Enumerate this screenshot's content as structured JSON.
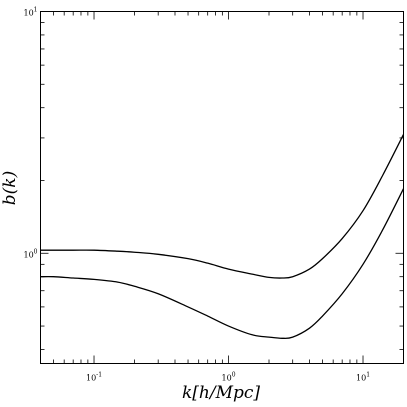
{
  "chart_data": {
    "type": "line",
    "title": "",
    "xlabel": "k[h/Mpc]",
    "ylabel": "b(k)",
    "xscale": "log",
    "yscale": "log",
    "xlim": [
      0.04,
      20
    ],
    "ylim": [
      0.35,
      10
    ],
    "grid": false,
    "x_tick_labels": [
      {
        "value": 0.1,
        "base": "10",
        "exp": "-1"
      },
      {
        "value": 1,
        "base": "10",
        "exp": "0"
      },
      {
        "value": 10,
        "base": "10",
        "exp": "1"
      }
    ],
    "y_tick_labels": [
      {
        "value": 1,
        "base": "10",
        "exp": "0"
      },
      {
        "value": 10,
        "base": "10",
        "exp": "1"
      }
    ],
    "series": [
      {
        "x": [
          0.04,
          0.05,
          0.07,
          0.1,
          0.15,
          0.2,
          0.3,
          0.5,
          0.7,
          1.0,
          1.5,
          2.0,
          2.5,
          3.0,
          4.0,
          5.0,
          7.0,
          10.0,
          14.0,
          20.0
        ],
        "y": [
          1.03,
          1.03,
          1.03,
          1.03,
          1.02,
          1.01,
          0.99,
          0.95,
          0.91,
          0.86,
          0.82,
          0.795,
          0.79,
          0.8,
          0.86,
          0.95,
          1.15,
          1.5,
          2.1,
          3.1
        ]
      },
      {
        "x": [
          0.04,
          0.05,
          0.07,
          0.1,
          0.15,
          0.2,
          0.3,
          0.5,
          0.7,
          1.0,
          1.5,
          2.0,
          2.5,
          3.0,
          4.0,
          5.0,
          7.0,
          10.0,
          14.0,
          20.0
        ],
        "y": [
          0.8,
          0.8,
          0.79,
          0.78,
          0.76,
          0.73,
          0.68,
          0.6,
          0.55,
          0.5,
          0.46,
          0.45,
          0.445,
          0.45,
          0.49,
          0.55,
          0.68,
          0.9,
          1.25,
          1.85
        ]
      }
    ]
  }
}
